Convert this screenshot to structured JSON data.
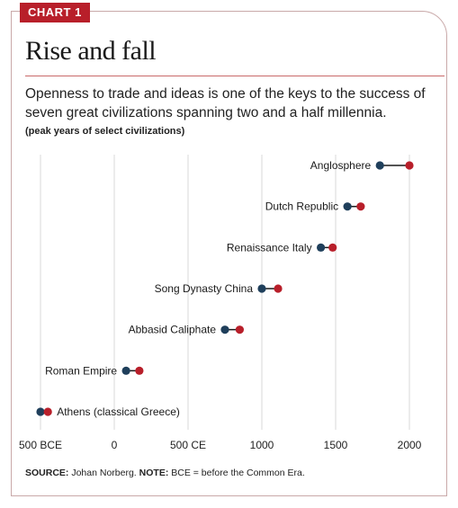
{
  "badge": "CHART 1",
  "title": "Rise and fall",
  "subtitle": "Openness to trade and ideas is one of the keys to the success of seven great civilizations spanning two and a half millennia.",
  "note": "(peak years of select civilizations)",
  "source": {
    "source_label": "SOURCE:",
    "source_text": "Johan Norberg.",
    "note_label": "NOTE:",
    "note_text": "BCE = before the Common Era."
  },
  "colors": {
    "start": "#1f3f5b",
    "end": "#b81f2a",
    "connector": "#1a1a1a",
    "grid": "#d9d9d9",
    "accent": "#b81f2a"
  },
  "chart_data": {
    "type": "dumbbell",
    "xlim": [
      -500,
      2000
    ],
    "xticks": [
      {
        "value": -500,
        "label": "500 BCE"
      },
      {
        "value": 0,
        "label": "0"
      },
      {
        "value": 500,
        "label": "500 CE"
      },
      {
        "value": 1000,
        "label": "1000"
      },
      {
        "value": 1500,
        "label": "1500"
      },
      {
        "value": 2000,
        "label": "2000"
      }
    ],
    "rows": [
      {
        "label": "Anglosphere",
        "start": 1800,
        "end": 2000
      },
      {
        "label": "Dutch Republic",
        "start": 1580,
        "end": 1670
      },
      {
        "label": "Renaissance Italy",
        "start": 1400,
        "end": 1480
      },
      {
        "label": "Song Dynasty China",
        "start": 1000,
        "end": 1110
      },
      {
        "label": "Abbasid Caliphate",
        "start": 750,
        "end": 850
      },
      {
        "label": "Roman Empire",
        "start": 80,
        "end": 170
      },
      {
        "label": "Athens (classical Greece)",
        "start": -500,
        "end": -450
      }
    ]
  }
}
